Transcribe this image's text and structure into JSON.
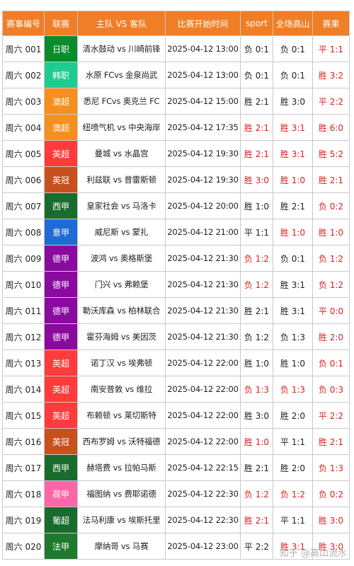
{
  "headers": [
    "赛事编号",
    "联赛",
    "主队 VS 客队",
    "比赛开始时间",
    "sport",
    "全场高山",
    "赛果"
  ],
  "colors": {
    "header_bg": "#f07e26",
    "red_text": "#e02020",
    "日职": "#0a8c2a",
    "韩职": "#1fcc8f",
    "澳超": "#f5901e",
    "英超": "#ff3b3b",
    "英冠": "#c8501e",
    "西甲": "#1a6b2e",
    "意甲": "#1e6bd6",
    "德甲": "#8a0aa0",
    "荷甲": "#ff66a8",
    "葡超": "#1a6b2e",
    "法甲": "#1f7a2e"
  },
  "rows": [
    {
      "id": "周六 001",
      "league": "日职",
      "match": "清水鼓动 vs 川崎前锋",
      "time": "2025-04-12 13:00",
      "sport": "负 0:1",
      "sport_red": false,
      "gs": "负 0:1",
      "gs_red": false,
      "result": "平 1:1",
      "result_red": true
    },
    {
      "id": "周六 002",
      "league": "韩职",
      "match": "水原 FCvs 金泉尚武",
      "time": "2025-04-12 13:00",
      "sport": "负 0:1",
      "sport_red": false,
      "gs": "负 0:1",
      "gs_red": false,
      "result": "胜 3:2",
      "result_red": true
    },
    {
      "id": "周六 003",
      "league": "澳超",
      "match": "悉尼 FCvs 奥克兰 FC",
      "time": "2025-04-12 15:00",
      "sport": "胜 2:1",
      "sport_red": false,
      "gs": "胜 3:0",
      "gs_red": false,
      "result": "平 2:2",
      "result_red": true
    },
    {
      "id": "周六 004",
      "league": "澳超",
      "match": "纽喷气机 vs 中央海岸",
      "time": "2025-04-12 17:35",
      "sport": "胜 2:1",
      "sport_red": true,
      "gs": "胜 3:1",
      "gs_red": true,
      "result": "胜 6:0",
      "result_red": true
    },
    {
      "id": "周六 005",
      "league": "英超",
      "match": "曼城 vs 水晶宫",
      "time": "2025-04-12 19:30",
      "sport": "胜 2:1",
      "sport_red": true,
      "gs": "胜 3:1",
      "gs_red": true,
      "result": "胜 5:2",
      "result_red": true
    },
    {
      "id": "周六 006",
      "league": "英冠",
      "match": "利兹联 vs 普雷斯顿",
      "time": "2025-04-12 19:30",
      "sport": "胜 3:0",
      "sport_red": true,
      "gs": "胜 1:0",
      "gs_red": true,
      "result": "胜 2:1",
      "result_red": true
    },
    {
      "id": "周六 007",
      "league": "西甲",
      "match": "皇家社会 vs 马洛卡",
      "time": "2025-04-12 20:00",
      "sport": "胜 1:0",
      "sport_red": false,
      "gs": "胜 2:1",
      "gs_red": false,
      "result": "负 0:2",
      "result_red": true
    },
    {
      "id": "周六 008",
      "league": "意甲",
      "match": "威尼斯 vs 蒙扎",
      "time": "2025-04-12 21:00",
      "sport": "平 1:1",
      "sport_red": false,
      "gs": "胜 1:0",
      "gs_red": true,
      "result": "胜 1:0",
      "result_red": true
    },
    {
      "id": "周六 009",
      "league": "德甲",
      "match": "波鸿 vs 奥格斯堡",
      "time": "2025-04-12 21:30",
      "sport": "负 1:2",
      "sport_red": true,
      "gs": "负 0:1",
      "gs_red": false,
      "result": "负 1:2",
      "result_red": true
    },
    {
      "id": "周六 010",
      "league": "德甲",
      "match": "门兴 vs 弗赖堡",
      "time": "2025-04-12 21:30",
      "sport": "负 1:2",
      "sport_red": true,
      "gs": "胜 3:1",
      "gs_red": false,
      "result": "负 1:2",
      "result_red": true
    },
    {
      "id": "周六 011",
      "league": "德甲",
      "match": "勒沃库森 vs 柏林联合",
      "time": "2025-04-12 21:30",
      "sport": "胜 2:1",
      "sport_red": false,
      "gs": "胜 3:1",
      "gs_red": false,
      "result": "平 0:0",
      "result_red": true
    },
    {
      "id": "周六 012",
      "league": "德甲",
      "match": "霍芬海姆 vs 美因茨",
      "time": "2025-04-12 21:30",
      "sport": "负 1:2",
      "sport_red": false,
      "gs": "负 1:3",
      "gs_red": false,
      "result": "胜 2:0",
      "result_red": true
    },
    {
      "id": "周六 013",
      "league": "英超",
      "match": "诺丁汉 vs 埃弗顿",
      "time": "2025-04-12 22:00",
      "sport": "胜 1:0",
      "sport_red": false,
      "gs": "胜 1:0",
      "gs_red": false,
      "result": "负 0:1",
      "result_red": true
    },
    {
      "id": "周六 014",
      "league": "英超",
      "match": "南安普敦 vs 维拉",
      "time": "2025-04-12 22:00",
      "sport": "负 1:3",
      "sport_red": true,
      "gs": "负 1:3",
      "gs_red": true,
      "result": "负 0:3",
      "result_red": true
    },
    {
      "id": "周六 015",
      "league": "英超",
      "match": "布赖顿 vs 莱切斯特",
      "time": "2025-04-12 22:00",
      "sport": "胜 3:0",
      "sport_red": false,
      "gs": "胜 2:0",
      "gs_red": false,
      "result": "平 2:2",
      "result_red": true
    },
    {
      "id": "周六 016",
      "league": "英冠",
      "match": "西布罗姆 vs 沃特福德",
      "time": "2025-04-12 22:00",
      "sport": "胜 1:0",
      "sport_red": true,
      "gs": "平 1:1",
      "gs_red": false,
      "result": "胜 2:1",
      "result_red": true
    },
    {
      "id": "周六 017",
      "league": "西甲",
      "match": "赫塔费 vs 拉帕马斯",
      "time": "2025-04-12 22:15",
      "sport": "胜 2:1",
      "sport_red": false,
      "gs": "胜 2:0",
      "gs_red": false,
      "result": "负 1:3",
      "result_red": true
    },
    {
      "id": "周六 018",
      "league": "荷甲",
      "match": "福图纳 vs 费耶诺德",
      "time": "2025-04-12 22:30",
      "sport": "负 1:2",
      "sport_red": true,
      "gs": "负 1:2",
      "gs_red": true,
      "result": "负 0:2",
      "result_red": true
    },
    {
      "id": "周六 019",
      "league": "葡超",
      "match": "法马利康 vs 埃斯托里",
      "time": "2025-04-12 22:30",
      "sport": "胜 2:1",
      "sport_red": true,
      "gs": "平 1:1",
      "gs_red": false,
      "result": "胜 3:0",
      "result_red": true
    },
    {
      "id": "周六 020",
      "league": "法甲",
      "match": "摩纳哥 vs 马赛",
      "time": "2025-04-12 23:00",
      "sport": "平 2:2",
      "sport_red": false,
      "gs": "胜 3:1",
      "gs_red": true,
      "result": "胜 3:0",
      "result_red": true
    }
  ],
  "watermark": "知乎 @高山流水"
}
